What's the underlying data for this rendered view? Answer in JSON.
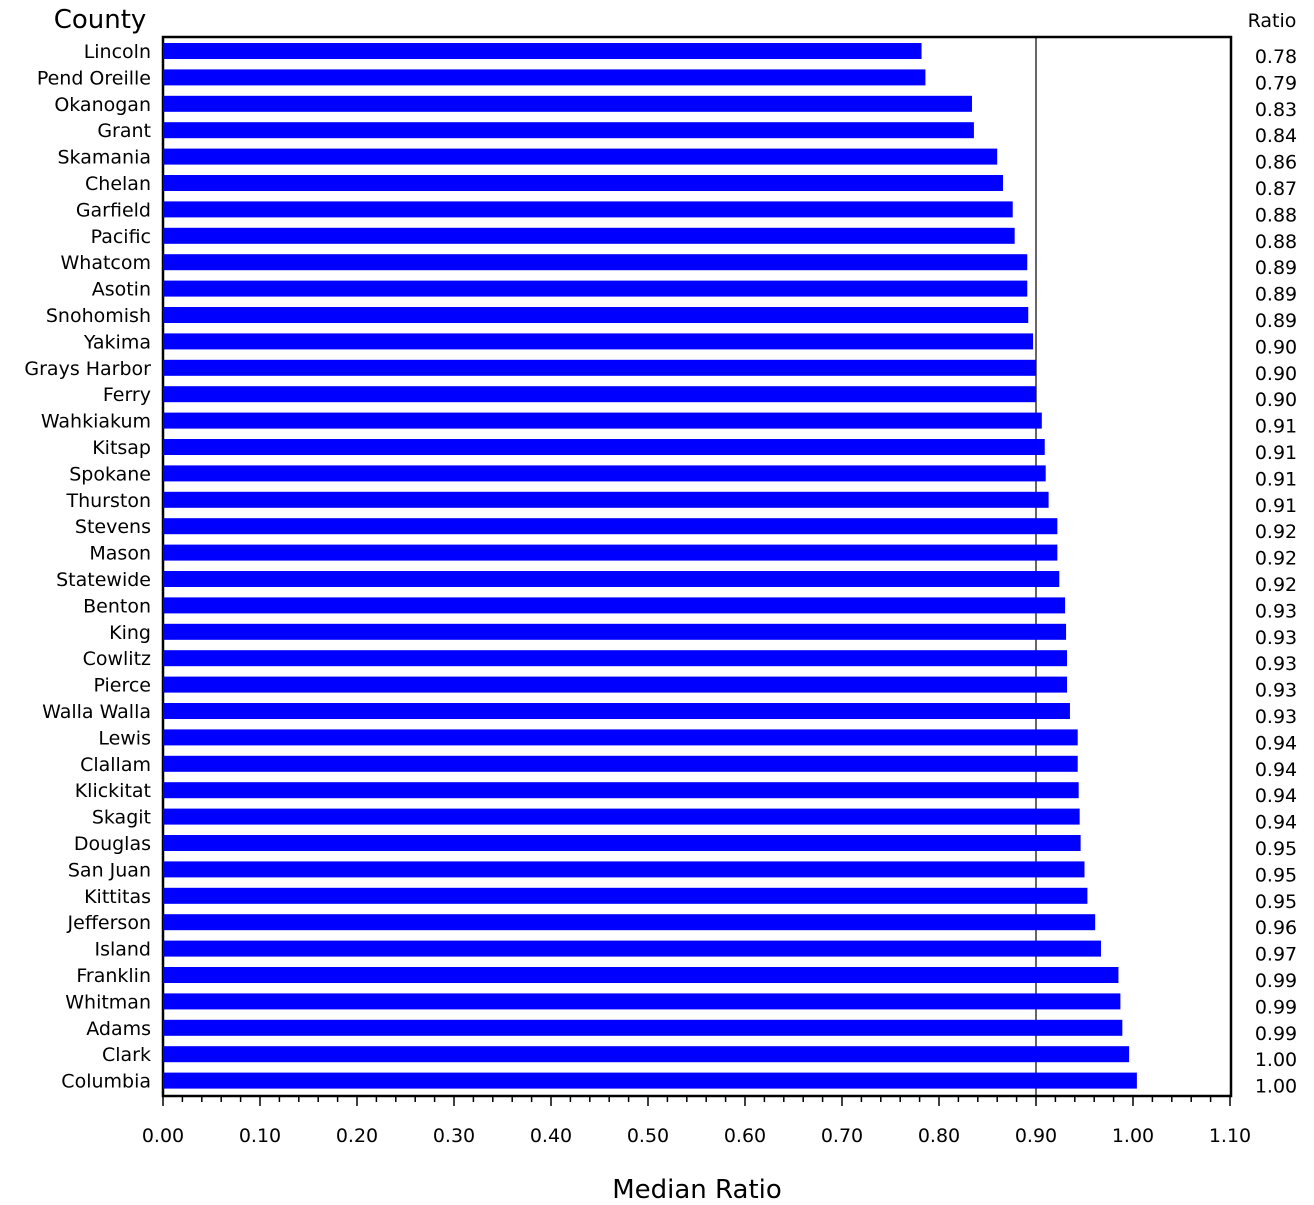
{
  "chart_data": {
    "type": "bar",
    "orientation": "horizontal",
    "category_header": "County",
    "value_header": "Ratio",
    "xlabel": "Median Ratio",
    "xlim": [
      0,
      1.1
    ],
    "x_ticks": [
      "0.00",
      "0.10",
      "0.20",
      "0.30",
      "0.40",
      "0.50",
      "0.60",
      "0.70",
      "0.80",
      "0.90",
      "1.00",
      "1.10"
    ],
    "reference_line": 0.9,
    "bar_color": "#0000ff",
    "categories": [
      "Lincoln",
      "Pend Oreille",
      "Okanogan",
      "Grant",
      "Skamania",
      "Chelan",
      "Garfield",
      "Pacific",
      "Whatcom",
      "Asotin",
      "Snohomish",
      "Yakima",
      "Grays Harbor",
      "Ferry",
      "Wahkiakum",
      "Kitsap",
      "Spokane",
      "Thurston",
      "Stevens",
      "Mason",
      "Statewide",
      "Benton",
      "King",
      "Cowlitz",
      "Pierce",
      "Walla Walla",
      "Lewis",
      "Clallam",
      "Klickitat",
      "Skagit",
      "Douglas",
      "San Juan",
      "Kittitas",
      "Jefferson",
      "Island",
      "Franklin",
      "Whitman",
      "Adams",
      "Clark",
      "Columbia"
    ],
    "values": [
      0.782,
      0.786,
      0.834,
      0.836,
      0.86,
      0.866,
      0.876,
      0.878,
      0.891,
      0.891,
      0.892,
      0.897,
      0.9,
      0.9,
      0.906,
      0.909,
      0.91,
      0.913,
      0.922,
      0.922,
      0.924,
      0.93,
      0.931,
      0.932,
      0.932,
      0.935,
      0.943,
      0.943,
      0.944,
      0.945,
      0.946,
      0.95,
      0.953,
      0.961,
      0.967,
      0.985,
      0.987,
      0.989,
      0.996,
      1.004
    ],
    "value_labels": [
      "0.78",
      "0.79",
      "0.83",
      "0.84",
      "0.86",
      "0.87",
      "0.88",
      "0.88",
      "0.89",
      "0.89",
      "0.89",
      "0.90",
      "0.90",
      "0.90",
      "0.91",
      "0.91",
      "0.91",
      "0.91",
      "0.92",
      "0.92",
      "0.92",
      "0.93",
      "0.93",
      "0.93",
      "0.93",
      "0.93",
      "0.94",
      "0.94",
      "0.94",
      "0.94",
      "0.95",
      "0.95",
      "0.95",
      "0.96",
      "0.97",
      "0.99",
      "0.99",
      "0.99",
      "1.00",
      "1.00"
    ]
  }
}
